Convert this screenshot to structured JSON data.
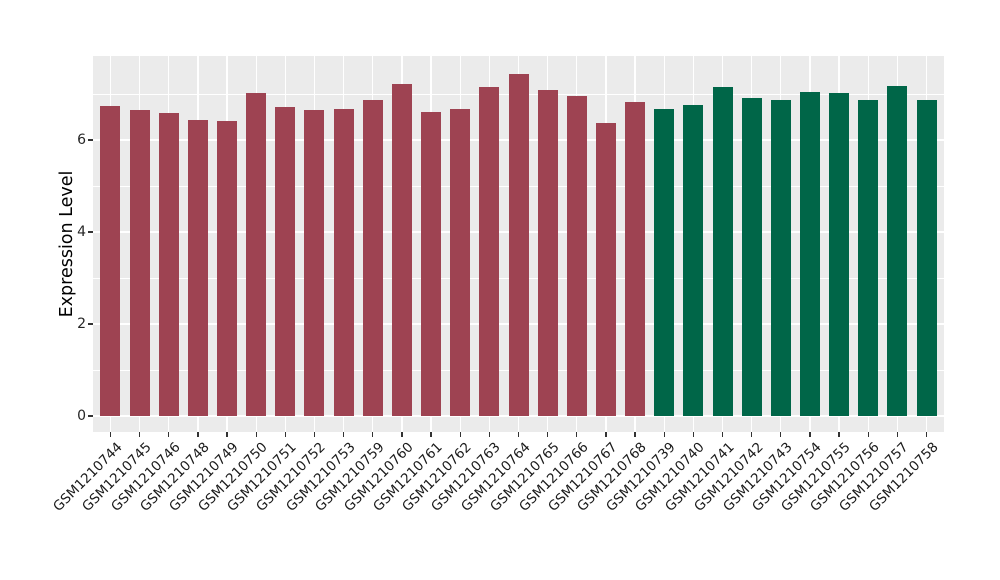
{
  "chart_data": {
    "type": "bar",
    "title": "",
    "xlabel": "",
    "ylabel": "Expression Level",
    "ylim": [
      -0.35,
      7.8
    ],
    "yticks": [
      0,
      2,
      4,
      6
    ],
    "yticks_minor": [
      1,
      3,
      5,
      7
    ],
    "grid": true,
    "legend_position": "none",
    "panel_bg": "#ebebeb",
    "grid_color": "#ffffff",
    "categories": [
      "GSM1210744",
      "GSM1210745",
      "GSM1210746",
      "GSM1210748",
      "GSM1210749",
      "GSM1210750",
      "GSM1210751",
      "GSM1210752",
      "GSM1210753",
      "GSM1210759",
      "GSM1210760",
      "GSM1210761",
      "GSM1210762",
      "GSM1210763",
      "GSM1210764",
      "GSM1210765",
      "GSM1210766",
      "GSM1210767",
      "GSM1210768",
      "GSM1210739",
      "GSM1210740",
      "GSM1210741",
      "GSM1210742",
      "GSM1210743",
      "GSM1210754",
      "GSM1210755",
      "GSM1210756",
      "GSM1210757",
      "GSM1210758"
    ],
    "values": [
      6.74,
      6.65,
      6.58,
      6.44,
      6.42,
      7.02,
      6.72,
      6.65,
      6.67,
      6.87,
      7.21,
      6.6,
      6.67,
      7.16,
      7.44,
      7.09,
      6.96,
      6.36,
      6.83,
      6.67,
      6.76,
      7.15,
      6.91,
      6.86,
      7.04,
      7.02,
      6.86,
      7.18,
      6.86
    ],
    "groups": [
      "group1",
      "group1",
      "group1",
      "group1",
      "group1",
      "group1",
      "group1",
      "group1",
      "group1",
      "group1",
      "group1",
      "group1",
      "group1",
      "group1",
      "group1",
      "group1",
      "group1",
      "group1",
      "group1",
      "group2",
      "group2",
      "group2",
      "group2",
      "group2",
      "group2",
      "group2",
      "group2",
      "group2",
      "group2"
    ],
    "group_colors": {
      "group1": "#9e4352",
      "group2": "#006648"
    }
  }
}
